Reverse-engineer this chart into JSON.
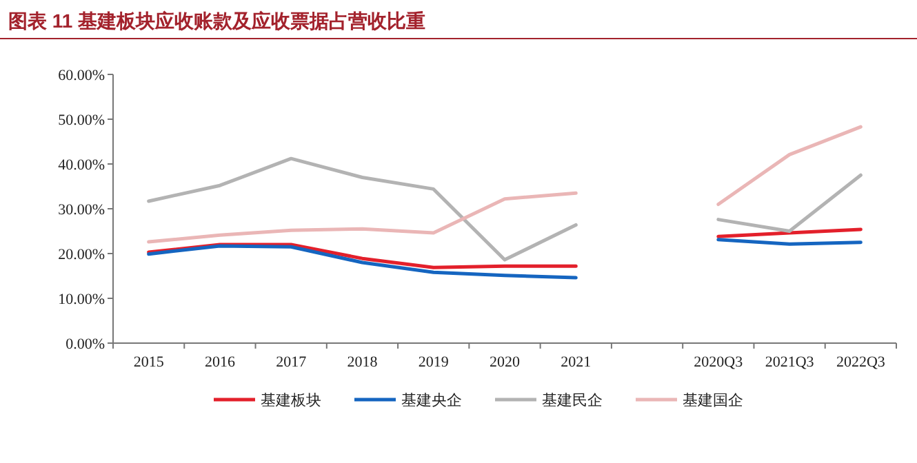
{
  "chart_data": {
    "type": "line",
    "title": "图表 11   基建板块应收账款及应收票据占营收比重",
    "categories": [
      "2015",
      "2016",
      "2017",
      "2018",
      "2019",
      "2020",
      "2021",
      null,
      "2020Q3",
      "2021Q3",
      "2022Q3"
    ],
    "series": [
      {
        "name": "基建板块",
        "color": "#e3202b",
        "values": [
          20.3,
          22.0,
          22.0,
          18.9,
          16.9,
          17.2,
          17.2,
          null,
          23.8,
          24.6,
          25.4
        ]
      },
      {
        "name": "基建央企",
        "color": "#1565c0",
        "values": [
          19.9,
          21.7,
          21.5,
          18.0,
          15.8,
          15.1,
          14.6,
          null,
          23.1,
          22.1,
          22.5
        ]
      },
      {
        "name": "基建民企",
        "color": "#b3b3b3",
        "values": [
          31.7,
          35.2,
          41.2,
          37.0,
          34.4,
          18.6,
          26.4,
          null,
          27.6,
          25.0,
          37.5
        ]
      },
      {
        "name": "基建国企",
        "color": "#eab6b6",
        "values": [
          22.6,
          24.1,
          25.2,
          25.5,
          24.6,
          32.2,
          33.5,
          null,
          31.0,
          42.1,
          48.3
        ]
      }
    ],
    "ylim": [
      0,
      60
    ],
    "yticks": [
      {
        "value": 0,
        "label": "0.00%"
      },
      {
        "value": 10,
        "label": "10.00%"
      },
      {
        "value": 20,
        "label": "20.00%"
      },
      {
        "value": 30,
        "label": "30.00%"
      },
      {
        "value": 40,
        "label": "40.00%"
      },
      {
        "value": 50,
        "label": "50.00%"
      },
      {
        "value": 60,
        "label": "60.00%"
      }
    ],
    "grid": false,
    "legend": "bottom",
    "marker": "none",
    "line_style": "solid"
  }
}
